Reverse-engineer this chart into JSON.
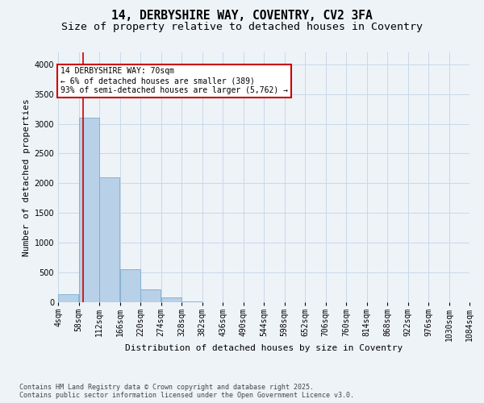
{
  "title_line1": "14, DERBYSHIRE WAY, COVENTRY, CV2 3FA",
  "title_line2": "Size of property relative to detached houses in Coventry",
  "xlabel": "Distribution of detached houses by size in Coventry",
  "ylabel": "Number of detached properties",
  "bar_color": "#b8d0e8",
  "bar_edge_color": "#7aadd0",
  "background_color": "#eef3f8",
  "vline_color": "#cc0000",
  "vline_x": 70,
  "annotation_title": "14 DERBYSHIRE WAY: 70sqm",
  "annotation_line2": "← 6% of detached houses are smaller (389)",
  "annotation_line3": "93% of semi-detached houses are larger (5,762) →",
  "annotation_box_color": "#ffffff",
  "annotation_box_edge": "#cc0000",
  "bin_edges": [
    4,
    58,
    112,
    166,
    220,
    274,
    328,
    382,
    436,
    490,
    544,
    598,
    652,
    706,
    760,
    814,
    868,
    922,
    976,
    1030,
    1084
  ],
  "bar_heights": [
    130,
    3100,
    2100,
    560,
    220,
    75,
    20,
    5,
    0,
    0,
    0,
    0,
    0,
    0,
    0,
    0,
    0,
    0,
    0,
    0
  ],
  "ylim": [
    0,
    4200
  ],
  "yticks": [
    0,
    500,
    1000,
    1500,
    2000,
    2500,
    3000,
    3500,
    4000
  ],
  "footer_line1": "Contains HM Land Registry data © Crown copyright and database right 2025.",
  "footer_line2": "Contains public sector information licensed under the Open Government Licence v3.0.",
  "grid_color": "#c8d8e8",
  "title_fontsize": 10.5,
  "subtitle_fontsize": 9.5,
  "label_fontsize": 8,
  "tick_fontsize": 7,
  "footer_fontsize": 6
}
